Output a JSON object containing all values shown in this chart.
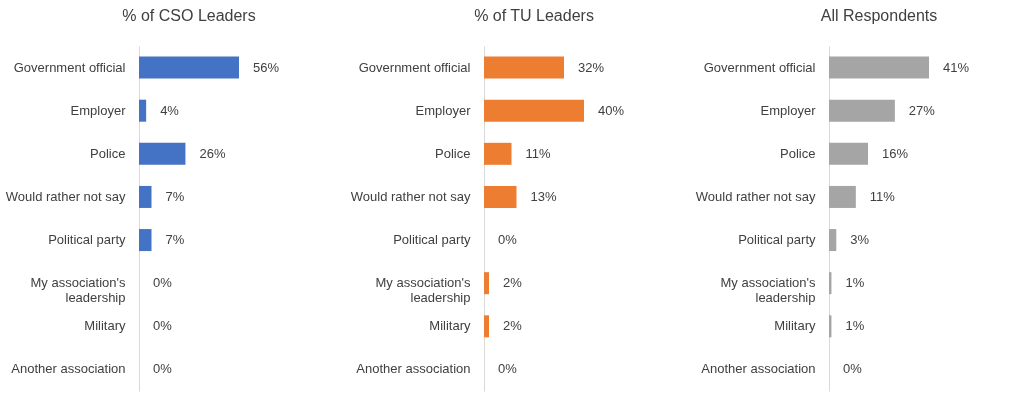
{
  "chart_data": [
    {
      "type": "bar",
      "orientation": "horizontal",
      "title": "% of CSO Leaders",
      "categories": [
        "Government official",
        "Employer",
        "Police",
        "Would rather not say",
        "Political party",
        "My association's leadership",
        "Military",
        "Another association"
      ],
      "series": [
        {
          "color": "#4472c4",
          "values": [
            56,
            4,
            26,
            7,
            7,
            0,
            0,
            0
          ],
          "value_labels": [
            "56%",
            "4%",
            "26%",
            "7%",
            "7%",
            "0%",
            "0%",
            "0%"
          ]
        }
      ],
      "tick_labels": "y"
    },
    {
      "type": "bar",
      "orientation": "horizontal",
      "title": "% of TU Leaders",
      "categories": [
        "Government official",
        "Employer",
        "Police",
        "Would rather not say",
        "Political party",
        "My association's leadership",
        "Military",
        "Another association"
      ],
      "series": [
        {
          "color": "#ed7d31",
          "values": [
            32,
            40,
            11,
            13,
            0,
            2,
            2,
            0
          ],
          "value_labels": [
            "32%",
            "40%",
            "11%",
            "13%",
            "0%",
            "2%",
            "2%",
            "0%"
          ]
        }
      ],
      "tick_labels": "y"
    },
    {
      "type": "bar",
      "orientation": "horizontal",
      "title": "All Respondents",
      "categories": [
        "Government official",
        "Employer",
        "Police",
        "Would rather not say",
        "Political party",
        "My association's leadership",
        "Military",
        "Another association"
      ],
      "series": [
        {
          "color": "#a5a5a5",
          "values": [
            41,
            27,
            16,
            11,
            3,
            1,
            1,
            0
          ],
          "value_labels": [
            "41%",
            "27%",
            "16%",
            "11%",
            "3%",
            "1%",
            "1%",
            "0%"
          ]
        }
      ],
      "tick_labels": "y"
    }
  ]
}
